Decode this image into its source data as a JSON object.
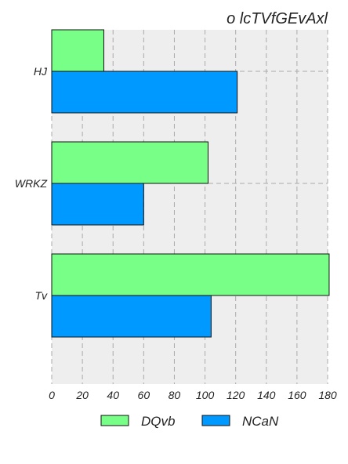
{
  "chart_data": {
    "type": "bar",
    "orientation": "horizontal",
    "title": "o lcTVfGEvAxl",
    "categories": [
      "HJ",
      "WRKZ",
      "Tv"
    ],
    "series": [
      {
        "name": "DQvb",
        "values": [
          34,
          102,
          181
        ],
        "color": "#77ff88"
      },
      {
        "name": "NCaN",
        "values": [
          121,
          60,
          104
        ],
        "color": "#0099ff"
      }
    ],
    "xlim": [
      0,
      180
    ],
    "xticks": [
      "0",
      "20",
      "40",
      "60",
      "80",
      "100",
      "120",
      "140",
      "160",
      "180"
    ],
    "grid": true,
    "legend_position": "bottom"
  },
  "colors": {
    "plot_background": "#eeeeee",
    "grid": "#aaaaaa",
    "bar_edge": "#111111"
  }
}
